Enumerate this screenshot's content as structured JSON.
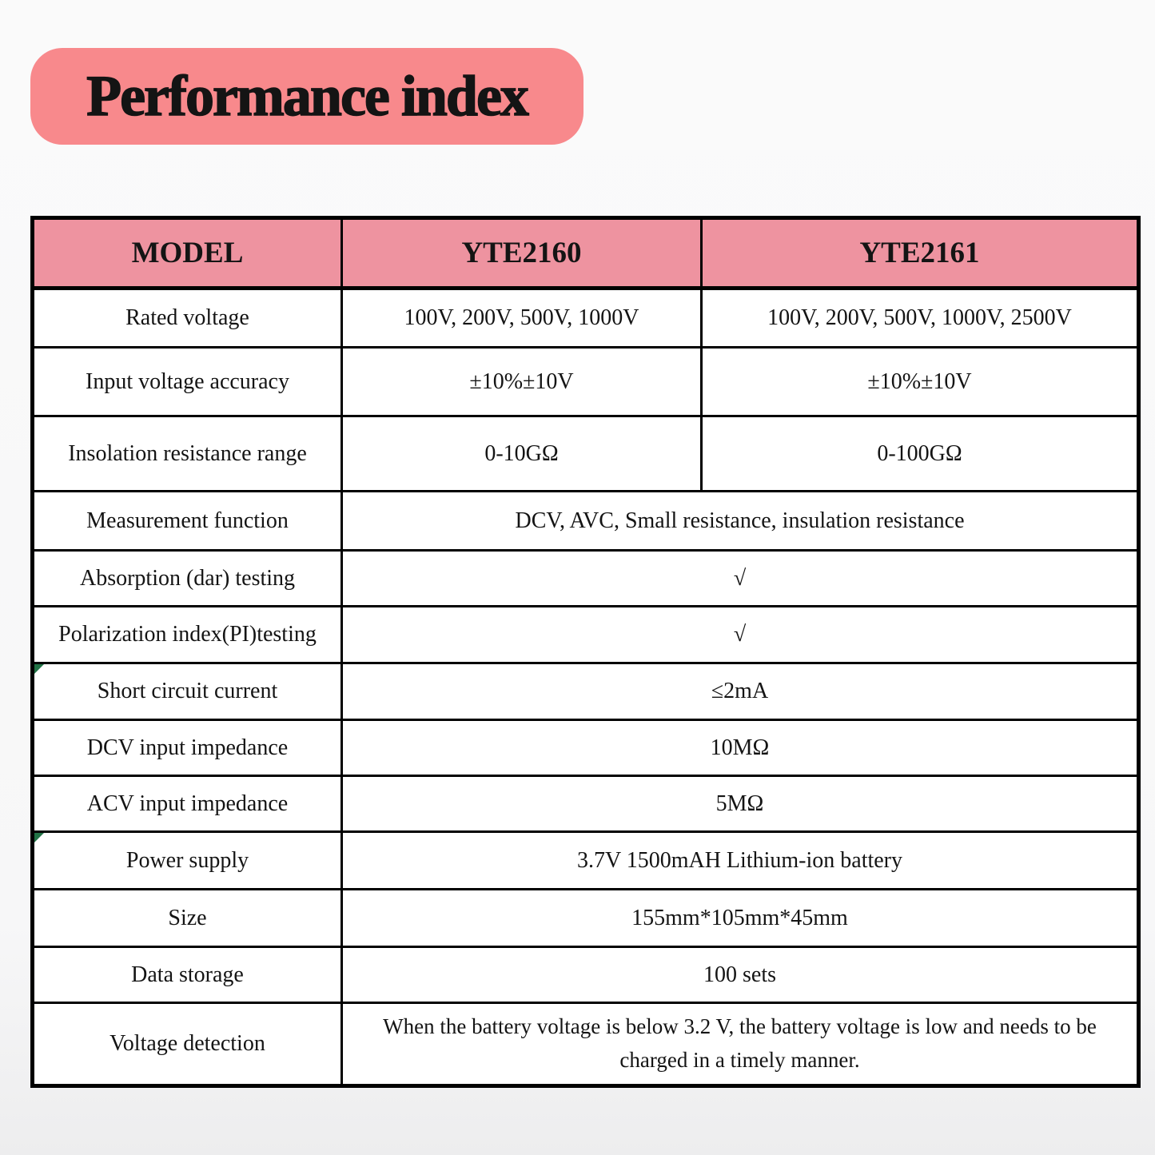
{
  "banner": {
    "title": "Performance index",
    "bg_color": "#f8898c"
  },
  "table": {
    "header_bg_color": "#ee93a0",
    "border_color": "#000000",
    "corner_marker_color": "#217346",
    "columns": [
      "MODEL",
      "YTE2160",
      "YTE2161"
    ],
    "rows": [
      {
        "label": "Rated voltage",
        "values": [
          "100V、200V、500V、1000V",
          "100V、200V、500V、1000V、2500V"
        ]
      },
      {
        "label": "Input voltage accuracy",
        "values": [
          "±10%±10V",
          "±10%±10V"
        ]
      },
      {
        "label": "Insolation resistance range",
        "values": [
          "0-10GΩ",
          "0-100GΩ"
        ]
      },
      {
        "label": "Measurement function",
        "values": [
          "DCV、AVC、Small resistance、insulation resistance"
        ]
      },
      {
        "label": "Absorption (dar) testing",
        "values": [
          "√"
        ]
      },
      {
        "label": "Polarization index(PI)testing",
        "values": [
          "√"
        ]
      },
      {
        "label": "Short circuit current",
        "values": [
          "≤2mA"
        ],
        "corner_marker": true
      },
      {
        "label": "DCV input impedance",
        "values": [
          "10MΩ"
        ]
      },
      {
        "label": "ACV input impedance",
        "values": [
          "5MΩ"
        ]
      },
      {
        "label": "Power supply",
        "values": [
          "3.7V 1500mAH  Lithium-ion battery"
        ],
        "corner_marker": true
      },
      {
        "label": "Size",
        "values": [
          "155mm*105mm*45mm"
        ]
      },
      {
        "label": "Data storage",
        "values": [
          "100 sets"
        ]
      },
      {
        "label": "Voltage detection",
        "values": [
          "When the battery voltage is below 3.2 V, the battery voltage is low and needs to be charged in a timely manner."
        ]
      }
    ]
  }
}
